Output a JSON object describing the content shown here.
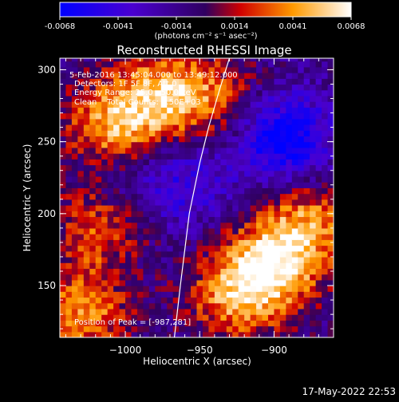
{
  "chart_data": {
    "type": "heatmap",
    "title": "Reconstructed RHESSI Image",
    "colorbar": {
      "ticks": [
        "-0.0068",
        "-0.0041",
        "-0.0014",
        "0.0014",
        "0.0041",
        "0.0068"
      ],
      "range": [
        -0.0068,
        0.0068
      ],
      "label": "(photons cm⁻² s⁻¹ asec⁻²)",
      "colors": [
        "#0000ff",
        "#5a00a8",
        "#3b0066",
        "#ff0000",
        "#ffa000",
        "#ffffff"
      ]
    },
    "annotations": [
      "5-Feb-2016 13:45:04.000 to 13:49:12.000",
      "Detectors: 1F 5F 8F, Att 0",
      "Energy Range: 25.0 - 50.0 keV",
      "Clean    Total Counts: 3.50E+03"
    ],
    "peak_label": "Position of Peak = [-987,281]",
    "xlabel": "Heliocentric X (arcsec)",
    "ylabel": "Heliocentric Y (arcsec)",
    "xticks": [
      "-1000",
      "-950",
      "-900"
    ],
    "yticks": [
      "300",
      "250",
      "200",
      "150"
    ],
    "xlim": [
      -1044,
      -860
    ],
    "ylim": [
      114,
      308
    ],
    "grid": false,
    "emission_regions": [
      {
        "x": -1010,
        "y": 260,
        "intensity": 0.006
      },
      {
        "x": -975,
        "y": 280,
        "intensity": 0.0055
      },
      {
        "x": -1020,
        "y": 190,
        "intensity": 0.004
      },
      {
        "x": -1030,
        "y": 130,
        "intensity": 0.005
      },
      {
        "x": -905,
        "y": 160,
        "intensity": 0.0068
      },
      {
        "x": -880,
        "y": 190,
        "intensity": 0.005
      },
      {
        "x": -930,
        "y": 140,
        "intensity": 0.0045
      },
      {
        "x": -940,
        "y": 280,
        "intensity": 0.003
      }
    ],
    "absorption_regions": [
      {
        "x": -895,
        "y": 250,
        "intensity": -0.006
      },
      {
        "x": -960,
        "y": 220,
        "intensity": -0.003
      },
      {
        "x": -1000,
        "y": 225,
        "intensity": -0.002
      }
    ],
    "limb_curve": [
      [
        -967,
        114
      ],
      [
        -963,
        150
      ],
      [
        -957,
        200
      ],
      [
        -950,
        235
      ],
      [
        -944,
        260
      ],
      [
        -937,
        285
      ],
      [
        -930,
        308
      ]
    ]
  },
  "footer": {
    "timestamp": "17-May-2022 22:53"
  }
}
